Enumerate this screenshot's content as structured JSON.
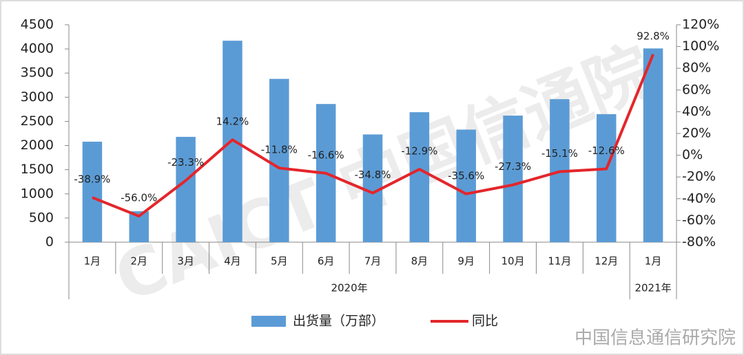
{
  "chart_data": {
    "type": "bar-line",
    "categories": [
      "1月",
      "2月",
      "3月",
      "4月",
      "5月",
      "6月",
      "7月",
      "8月",
      "9月",
      "10月",
      "11月",
      "12月",
      "1月"
    ],
    "x_groups": [
      {
        "label": "2020年",
        "count": 12
      },
      {
        "label": "2021年",
        "count": 1
      }
    ],
    "series": [
      {
        "name": "出货量（万部）",
        "color": "#5b9bd5",
        "kind": "bar",
        "values": [
          2080,
          640,
          2180,
          4170,
          3380,
          2860,
          2230,
          2690,
          2330,
          2620,
          2960,
          2650,
          4010
        ]
      },
      {
        "name": "同比",
        "color": "#e3262b",
        "kind": "line",
        "axis": "y2",
        "values": [
          -38.9,
          -56.0,
          -23.3,
          14.2,
          -11.8,
          -16.6,
          -34.8,
          -12.9,
          -35.6,
          -27.3,
          -15.1,
          -12.6,
          92.8
        ],
        "value_labels": [
          "-38.9%",
          "-56.0%",
          "-23.3%",
          "14.2%",
          "-11.8%",
          "-16.6%",
          "-34.8%",
          "-12.9%",
          "-35.6%",
          "-27.3%",
          "-15.1%",
          "-12.6%",
          "92.8%"
        ]
      }
    ],
    "ylim": [
      0,
      4500
    ],
    "yticks": [
      0,
      500,
      1000,
      1500,
      2000,
      2500,
      3000,
      3500,
      4000,
      4500
    ],
    "y2lim": [
      -80,
      120
    ],
    "y2ticks": [
      {
        "value": -80,
        "label": "-80%"
      },
      {
        "value": -60,
        "label": "-60%"
      },
      {
        "value": -40,
        "label": "-40%"
      },
      {
        "value": -20,
        "label": "-20%"
      },
      {
        "value": 0,
        "label": "0%"
      },
      {
        "value": 20,
        "label": "20%"
      },
      {
        "value": 40,
        "label": "40%"
      },
      {
        "value": 60,
        "label": "60%"
      },
      {
        "value": 80,
        "label": "80%"
      },
      {
        "value": 100,
        "label": "100%"
      },
      {
        "value": 120,
        "label": "120%"
      }
    ],
    "grid": false,
    "legend": "bottom",
    "watermark": "CAICT 中国信通院",
    "source": "中国信息通信研究院"
  }
}
